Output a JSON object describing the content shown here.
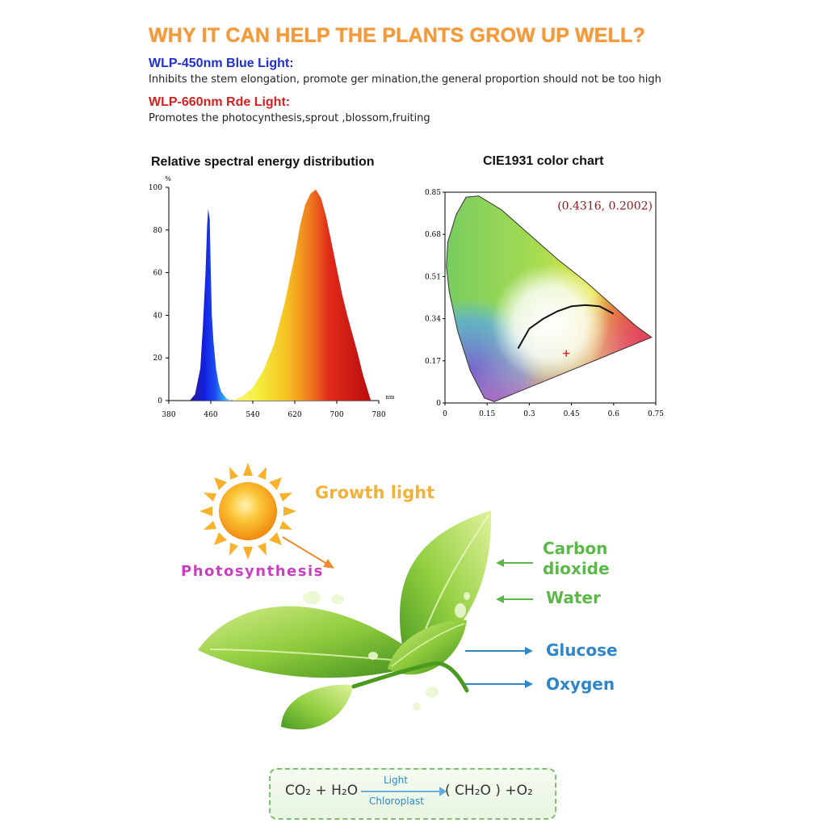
{
  "header": {
    "headline": "WHY IT CAN HELP THE PLANTS GROW UP WELL?",
    "blue": {
      "title": "WLP-450nm Blue Light:",
      "desc": "Inhibits the stem elongation, promote ger mination,the general proportion should not be too high"
    },
    "red": {
      "title": "WLP-660nm Rde Light:",
      "desc": "Promotes the photocynthesis,sprout ,blossom,fruiting"
    }
  },
  "chart_data": [
    {
      "type": "area",
      "title": "Relative spectral energy distribution",
      "ylabel": "%",
      "xlabel": "nm",
      "xlim": [
        380,
        780
      ],
      "ylim": [
        0,
        100
      ],
      "x_ticks": [
        "380",
        "460",
        "540",
        "620",
        "700",
        "780"
      ],
      "y_ticks": [
        "0",
        "20",
        "40",
        "60",
        "80",
        "100"
      ],
      "grid": false,
      "series": [
        {
          "x": [
            420,
            430,
            440,
            445,
            450,
            453,
            455,
            458,
            460,
            462,
            465,
            470,
            475,
            480,
            490,
            500
          ],
          "y": [
            0,
            3,
            15,
            35,
            60,
            82,
            90,
            85,
            60,
            40,
            28,
            15,
            8,
            4,
            1,
            0
          ],
          "color": "#1b2fd8"
        },
        {
          "x": [
            500,
            520,
            540,
            560,
            580,
            600,
            620,
            630,
            640,
            650,
            660,
            670,
            680,
            690,
            700,
            710,
            720,
            730,
            740,
            750,
            760,
            765
          ],
          "y": [
            0,
            2,
            6,
            14,
            26,
            45,
            68,
            82,
            92,
            97,
            99,
            95,
            86,
            74,
            62,
            50,
            40,
            31,
            22,
            12,
            4,
            0
          ],
          "color": "#e8b020"
        }
      ]
    },
    {
      "type": "scatter",
      "title": "CIE1931 color chart",
      "xlim": [
        0,
        0.75
      ],
      "ylim": [
        0,
        0.85
      ],
      "x_ticks": [
        "0",
        "0.15",
        "0.3",
        "0.45",
        "0.6",
        "0.75"
      ],
      "y_ticks": [
        "0",
        "0.17",
        "0.34",
        "0.51",
        "0.68",
        "0.85"
      ],
      "grid": false,
      "point": {
        "x": 0.4316,
        "y": 0.2002,
        "label": "(0.4316,  0.2002)",
        "color": "#e02020"
      }
    }
  ],
  "infographic": {
    "growth_light": "Growth light",
    "photosynthesis": "Photosynthesis",
    "carbon_dioxide_line1": "Carbon",
    "carbon_dioxide_line2": "dioxide",
    "water": "Water",
    "glucose": "Glucose",
    "oxygen": "Oxygen"
  },
  "formula": {
    "left": "CO₂ + H₂O",
    "above_arrow": "Light",
    "below_arrow": "Chloroplast",
    "right": "( CH₂O ) +O₂"
  }
}
